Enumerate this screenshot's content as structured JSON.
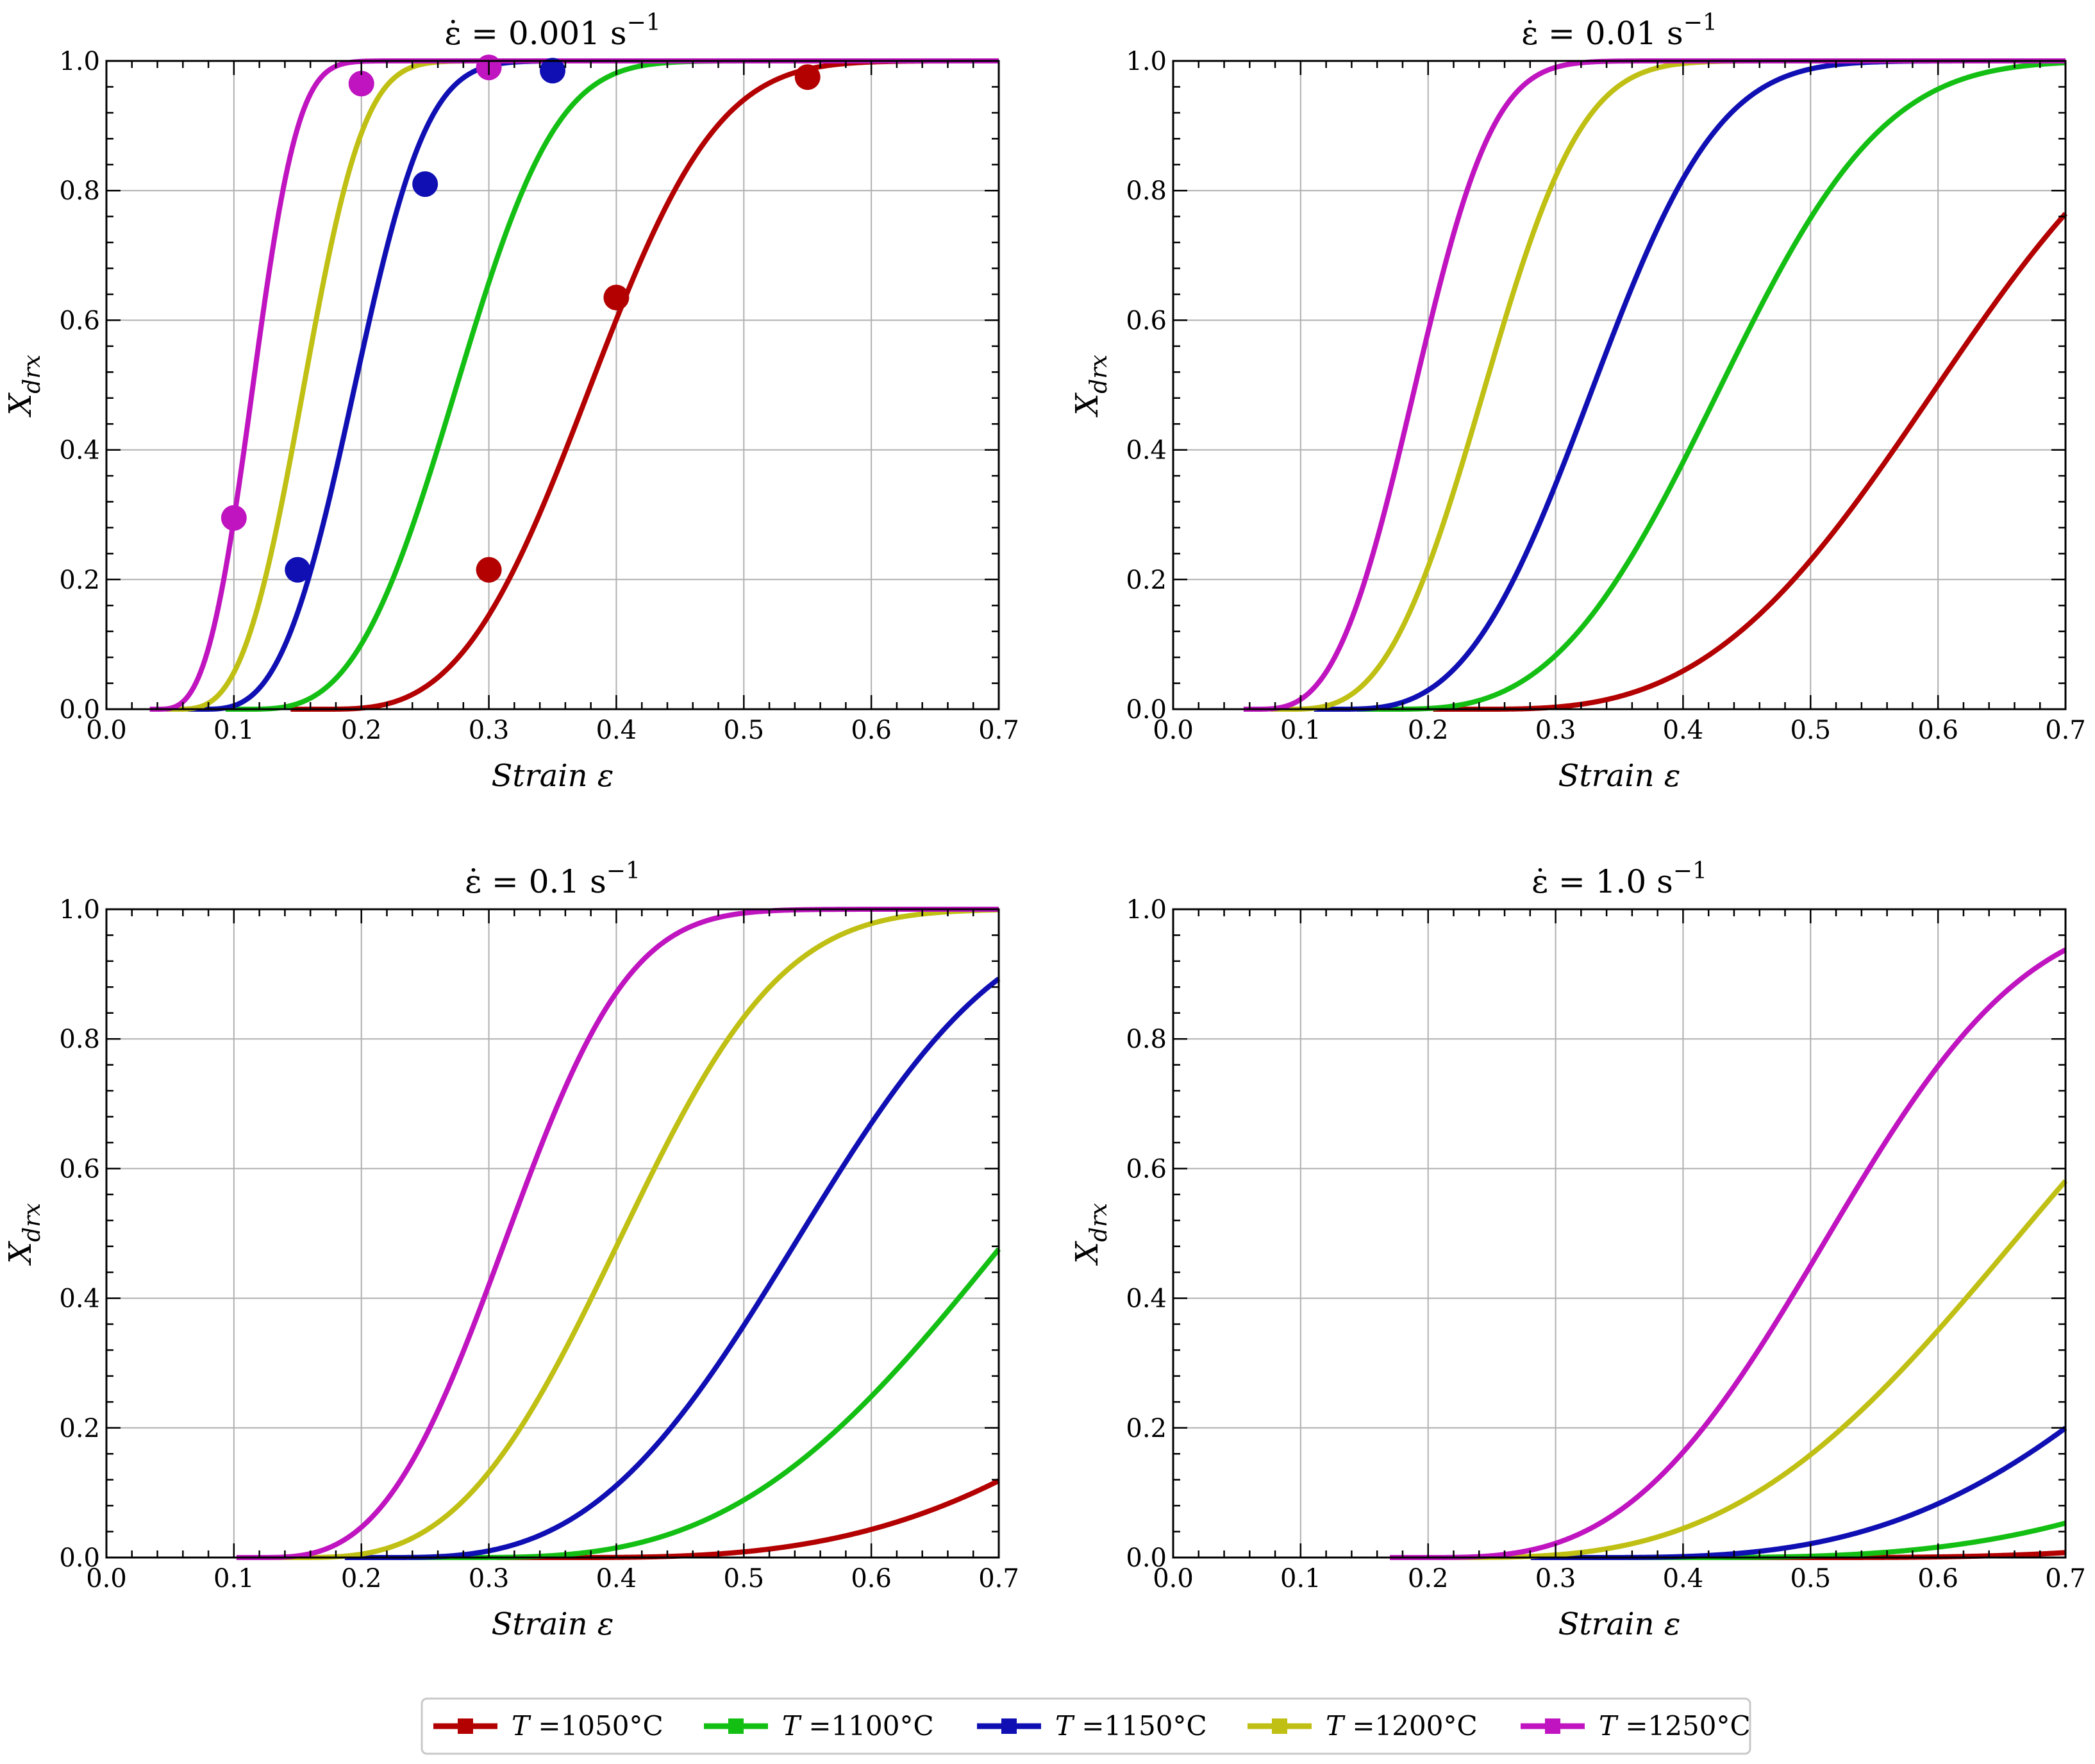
{
  "legend": [
    {
      "var": "T",
      "label": " =1050°C",
      "color": "#b30000"
    },
    {
      "var": "T",
      "label": " =1100°C",
      "color": "#14bf14"
    },
    {
      "var": "T",
      "label": " =1150°C",
      "color": "#0f0fb3"
    },
    {
      "var": "T",
      "label": " =1200°C",
      "color": "#bfbf14"
    },
    {
      "var": "T",
      "label": " =1250°C",
      "color": "#bf14bf"
    }
  ],
  "chart_data": [
    {
      "type": "line",
      "title": "ε̇ = 0.001 s",
      "title_sup": "−1",
      "xlabel": "Strain ε",
      "ylabel": "X",
      "ylabel_sub": "drx",
      "xlim": [
        0.0,
        0.7
      ],
      "ylim": [
        0.0,
        1.0
      ],
      "xticks": [
        "0.0",
        "0.1",
        "0.2",
        "0.3",
        "0.4",
        "0.5",
        "0.6",
        "0.7"
      ],
      "yticks": [
        "0.0",
        "0.2",
        "0.4",
        "0.6",
        "0.8",
        "1.0"
      ],
      "grid": true,
      "series": [
        {
          "name": "T =1050°C",
          "color": "#b30000",
          "eps_c": 0.17,
          "eps_half": 0.38,
          "k": 3.1,
          "points": [
            [
              0.3,
              0.215
            ],
            [
              0.4,
              0.635
            ],
            [
              0.55,
              0.975
            ]
          ]
        },
        {
          "name": "T =1100°C",
          "color": "#14bf14",
          "eps_c": 0.11,
          "eps_half": 0.275,
          "k": 3.1,
          "points": []
        },
        {
          "name": "T =1150°C",
          "color": "#0f0fb3",
          "eps_c": 0.075,
          "eps_half": 0.195,
          "k": 3.1,
          "points": [
            [
              0.15,
              0.215
            ],
            [
              0.25,
              0.81
            ],
            [
              0.35,
              0.985
            ]
          ]
        },
        {
          "name": "T =1200°C",
          "color": "#bfbf14",
          "eps_c": 0.055,
          "eps_half": 0.155,
          "k": 3.1,
          "points": []
        },
        {
          "name": "T =1250°C",
          "color": "#bf14bf",
          "eps_c": 0.04,
          "eps_half": 0.115,
          "k": 3.1,
          "points": [
            [
              0.1,
              0.295
            ],
            [
              0.2,
              0.965
            ],
            [
              0.3,
              0.99
            ]
          ]
        }
      ]
    },
    {
      "type": "line",
      "title": "ε̇ = 0.01 s",
      "title_sup": "−1",
      "xlabel": "Strain ε",
      "ylabel": "X",
      "ylabel_sub": "drx",
      "xlim": [
        0.0,
        0.7
      ],
      "ylim": [
        0.0,
        1.0
      ],
      "xticks": [
        "0.0",
        "0.1",
        "0.2",
        "0.3",
        "0.4",
        "0.5",
        "0.6",
        "0.7"
      ],
      "yticks": [
        "0.0",
        "0.2",
        "0.4",
        "0.6",
        "0.8",
        "1.0"
      ],
      "grid": true,
      "series": [
        {
          "name": "T =1050°C",
          "color": "#b30000",
          "eps_c": 0.24,
          "eps_half": 0.6,
          "k": 3.0,
          "points": []
        },
        {
          "name": "T =1100°C",
          "color": "#14bf14",
          "eps_c": 0.17,
          "eps_half": 0.43,
          "k": 3.0,
          "points": []
        },
        {
          "name": "T =1150°C",
          "color": "#0f0fb3",
          "eps_c": 0.13,
          "eps_half": 0.33,
          "k": 3.0,
          "points": []
        },
        {
          "name": "T =1200°C",
          "color": "#bfbf14",
          "eps_c": 0.09,
          "eps_half": 0.245,
          "k": 3.0,
          "points": []
        },
        {
          "name": "T =1250°C",
          "color": "#bf14bf",
          "eps_c": 0.065,
          "eps_half": 0.19,
          "k": 3.0,
          "points": []
        }
      ]
    },
    {
      "type": "line",
      "title": "ε̇ = 0.1 s",
      "title_sup": "−1",
      "xlabel": "Strain ε",
      "ylabel": "X",
      "ylabel_sub": "drx",
      "xlim": [
        0.0,
        0.7
      ],
      "ylim": [
        0.0,
        1.0
      ],
      "xticks": [
        "0.0",
        "0.1",
        "0.2",
        "0.3",
        "0.4",
        "0.5",
        "0.6",
        "0.7"
      ],
      "yticks": [
        "0.0",
        "0.2",
        "0.4",
        "0.6",
        "0.8",
        "1.0"
      ],
      "grid": true,
      "series": [
        {
          "name": "T =1050°C",
          "color": "#b30000",
          "eps_c": 0.36,
          "eps_half": 0.96,
          "k": 3.0,
          "points": []
        },
        {
          "name": "T =1100°C",
          "color": "#14bf14",
          "eps_c": 0.28,
          "eps_half": 0.71,
          "k": 3.0,
          "points": []
        },
        {
          "name": "T =1150°C",
          "color": "#0f0fb3",
          "eps_c": 0.22,
          "eps_half": 0.545,
          "k": 3.0,
          "points": []
        },
        {
          "name": "T =1200°C",
          "color": "#bfbf14",
          "eps_c": 0.15,
          "eps_half": 0.405,
          "k": 3.0,
          "points": []
        },
        {
          "name": "T =1250°C",
          "color": "#bf14bf",
          "eps_c": 0.12,
          "eps_half": 0.315,
          "k": 3.0,
          "points": []
        }
      ]
    },
    {
      "type": "line",
      "title": "ε̇ = 1.0 s",
      "title_sup": "−1",
      "xlabel": "Strain ε",
      "ylabel": "X",
      "ylabel_sub": "drx",
      "xlim": [
        0.0,
        0.7
      ],
      "ylim": [
        0.0,
        1.0
      ],
      "xticks": [
        "0.0",
        "0.1",
        "0.2",
        "0.3",
        "0.4",
        "0.5",
        "0.6",
        "0.7"
      ],
      "yticks": [
        "0.0",
        "0.2",
        "0.4",
        "0.6",
        "0.8",
        "1.0"
      ],
      "grid": true,
      "series": [
        {
          "name": "T =1050°C",
          "color": "#b30000",
          "eps_c": 0.5,
          "eps_half": 1.4,
          "k": 3.0,
          "points": []
        },
        {
          "name": "T =1100°C",
          "color": "#14bf14",
          "eps_c": 0.4,
          "eps_half": 1.1,
          "k": 3.0,
          "points": []
        },
        {
          "name": "T =1150°C",
          "color": "#0f0fb3",
          "eps_c": 0.33,
          "eps_half": 0.87,
          "k": 3.0,
          "points": []
        },
        {
          "name": "T =1200°C",
          "color": "#bfbf14",
          "eps_c": 0.22,
          "eps_half": 0.665,
          "k": 3.0,
          "points": []
        },
        {
          "name": "T =1250°C",
          "color": "#bf14bf",
          "eps_c": 0.2,
          "eps_half": 0.515,
          "k": 3.0,
          "points": []
        }
      ]
    }
  ]
}
